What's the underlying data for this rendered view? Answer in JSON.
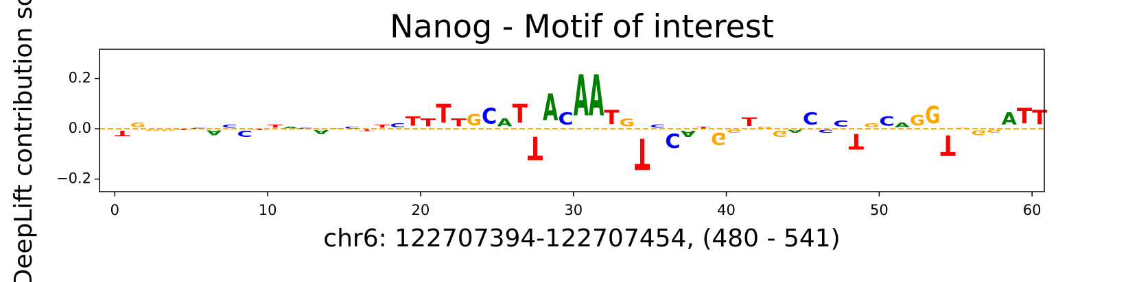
{
  "chart_data": {
    "type": "logo",
    "title": "Nanog - Motif of interest",
    "xlabel": "chr6: 122707394-122707454, (480 - 541)",
    "ylabel": "DeepLift contribution score",
    "x": [
      0,
      1,
      2,
      3,
      4,
      5,
      6,
      7,
      8,
      9,
      10,
      11,
      12,
      13,
      14,
      15,
      16,
      17,
      18,
      19,
      20,
      21,
      22,
      23,
      24,
      25,
      26,
      27,
      28,
      29,
      30,
      31,
      32,
      33,
      34,
      35,
      36,
      37,
      38,
      39,
      40,
      41,
      42,
      43,
      44,
      45,
      46,
      47,
      48,
      49,
      50,
      51,
      52,
      53,
      54,
      55,
      56,
      57,
      58,
      59,
      60
    ],
    "letters": [
      "T",
      "G",
      "G",
      "G",
      "T",
      "C",
      "A",
      "C",
      "C",
      "T",
      "T",
      "A",
      "C",
      "A",
      "T",
      "C",
      "T",
      "T",
      "C",
      "T",
      "T",
      "T",
      "T",
      "G",
      "C",
      "A",
      "T",
      "T",
      "A",
      "C",
      "A",
      "A",
      "T",
      "G",
      "T",
      "C",
      "C",
      "A",
      "T",
      "G",
      "G",
      "T",
      "G",
      "G",
      "A",
      "C",
      "C",
      "C",
      "T",
      "G",
      "C",
      "A",
      "G",
      "G",
      "T",
      "G",
      "G",
      "G",
      "A",
      "T",
      "T"
    ],
    "values": [
      -0.035,
      0.03,
      -0.01,
      -0.01,
      -0.005,
      0.005,
      -0.03,
      0.02,
      -0.04,
      -0.005,
      0.02,
      0.01,
      0.005,
      -0.025,
      0.003,
      0.01,
      -0.01,
      0.02,
      0.025,
      0.06,
      0.05,
      0.12,
      0.05,
      0.07,
      0.1,
      0.05,
      0.12,
      -0.15,
      0.17,
      0.08,
      0.26,
      0.26,
      0.09,
      0.05,
      -0.2,
      0.02,
      -0.09,
      -0.04,
      0.01,
      -0.08,
      -0.02,
      0.055,
      0.01,
      -0.04,
      -0.02,
      0.08,
      -0.02,
      0.04,
      -0.1,
      0.025,
      0.06,
      0.03,
      0.065,
      0.11,
      -0.13,
      0.005,
      -0.03,
      -0.02,
      0.08,
      0.1,
      0.09
    ],
    "colors": {
      "A": "#008000",
      "C": "#0000ff",
      "G": "#ffa500",
      "T": "#ff0000"
    },
    "baseline_color": "#ffa500",
    "xlim": [
      -1,
      60.8
    ],
    "ylim": [
      -0.25,
      0.316
    ],
    "xticks": [
      0,
      10,
      20,
      30,
      40,
      50,
      60
    ],
    "yticks": [
      {
        "value": -0.2,
        "label": "−0.2"
      },
      {
        "value": 0,
        "label": "0.0"
      },
      {
        "value": 0.2,
        "label": "0.2"
      }
    ]
  }
}
